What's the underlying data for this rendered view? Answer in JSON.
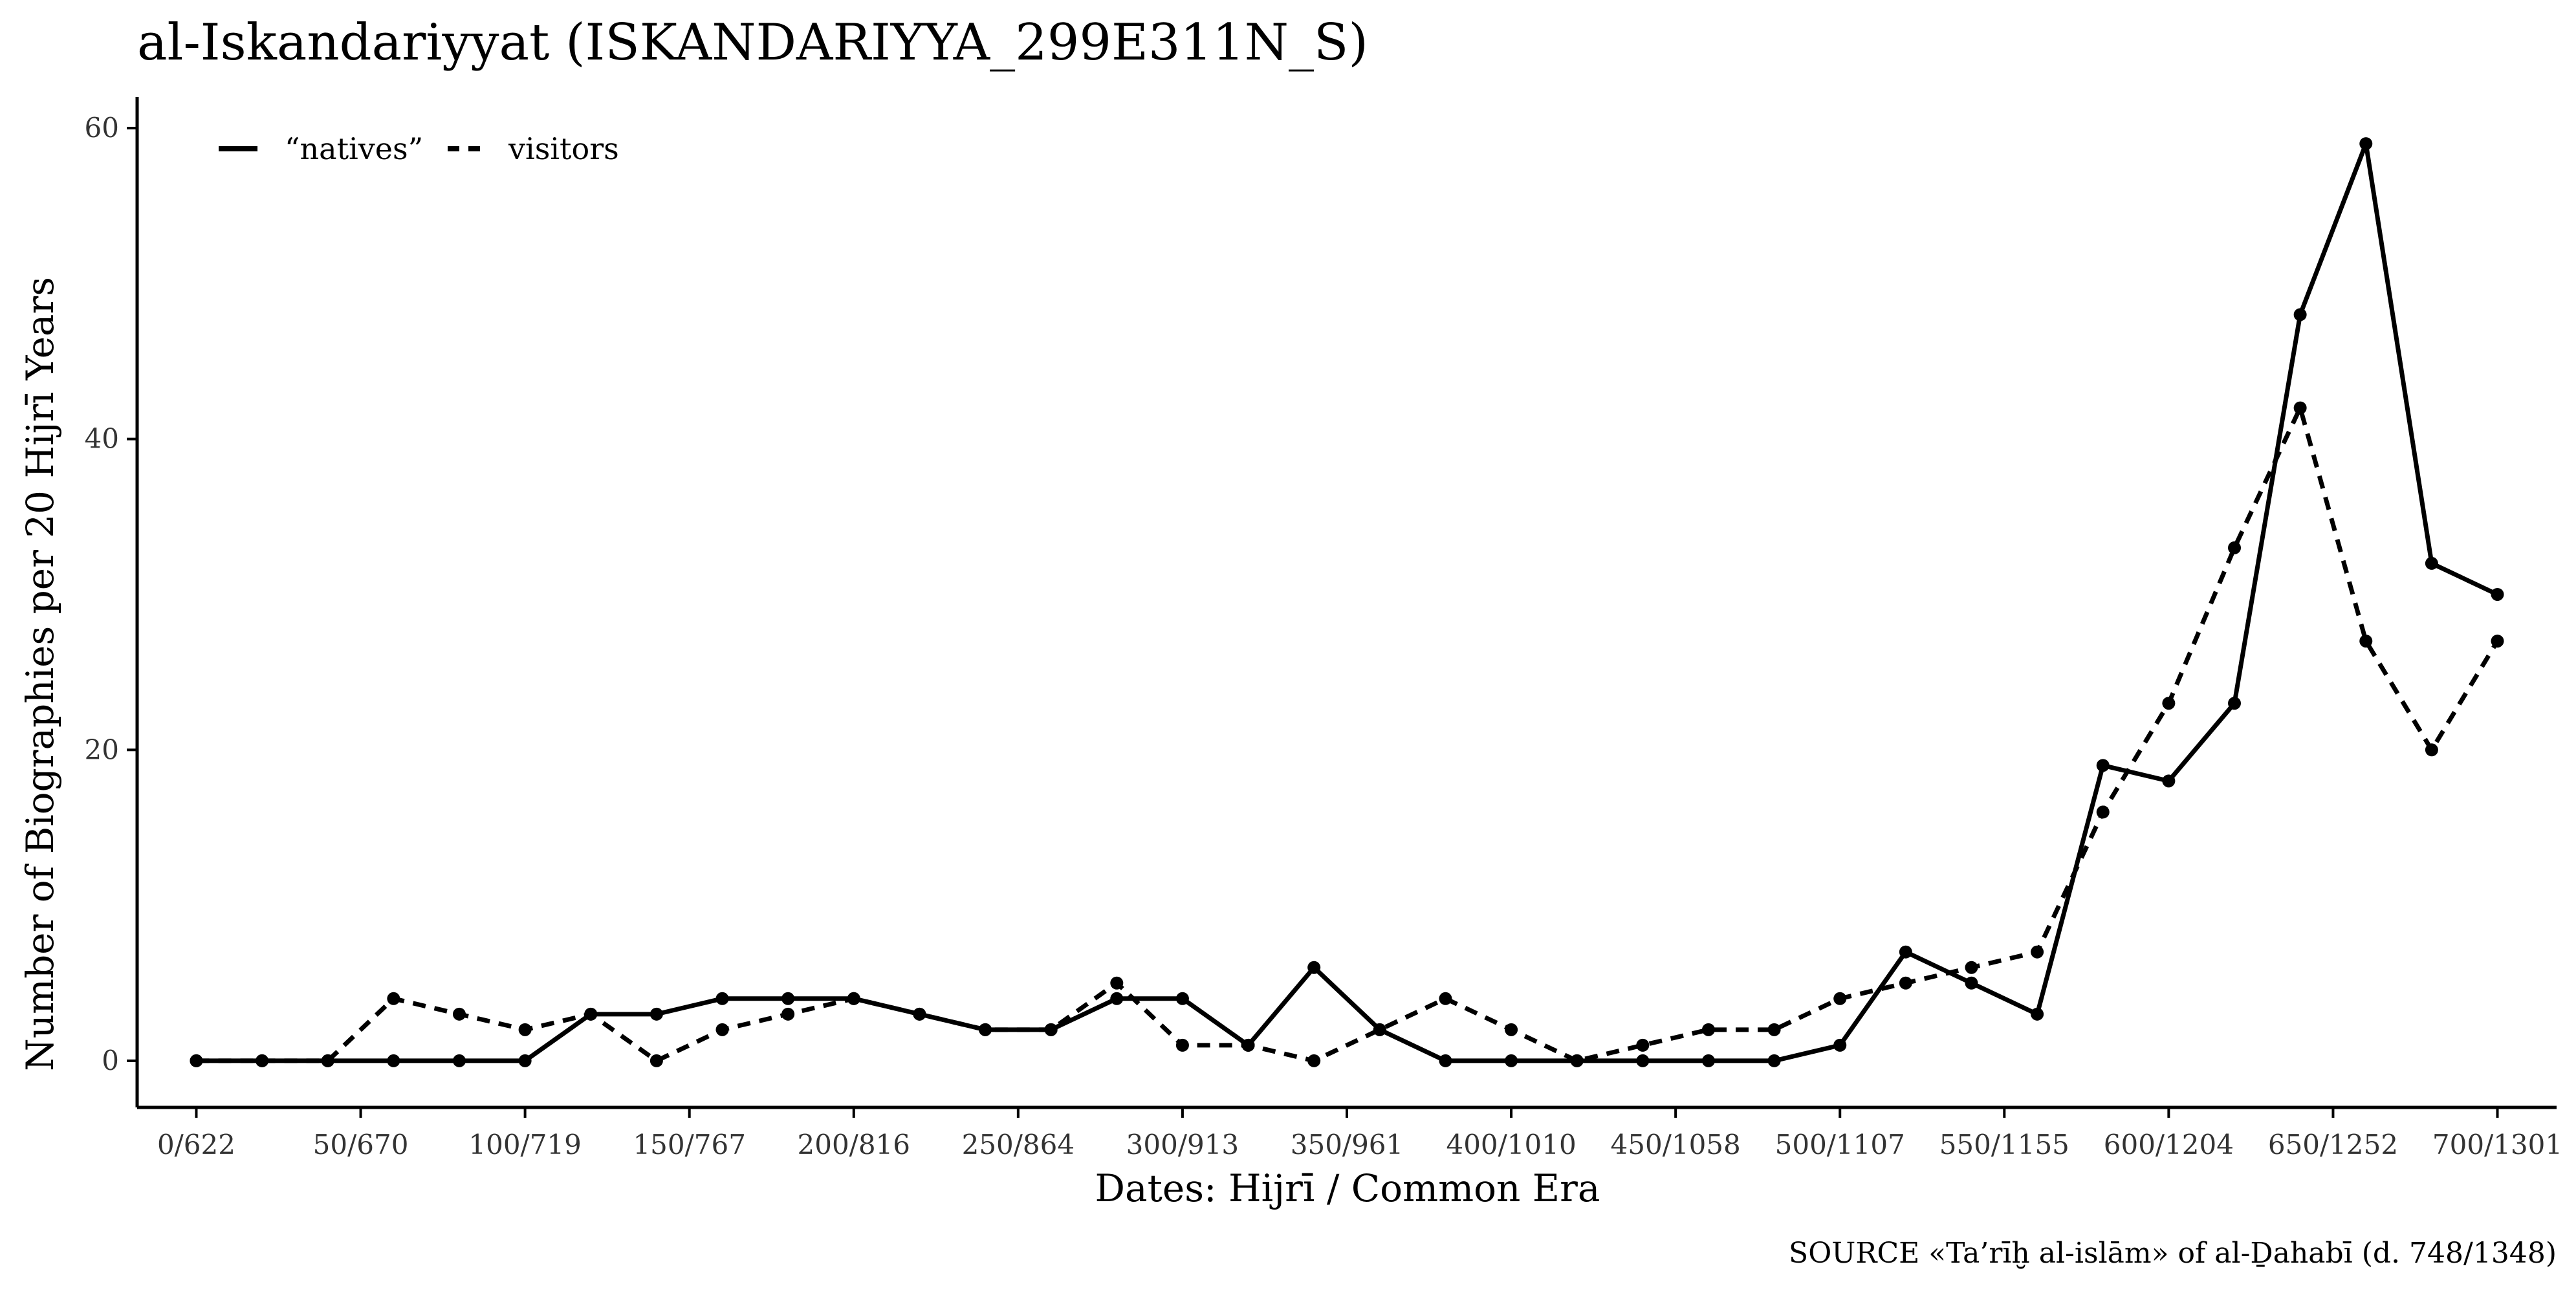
{
  "chart_data": {
    "type": "line",
    "title": "al-Iskandariyyat (ISKANDARIYYA_299E311N_S)",
    "xlabel": "Dates: Hijrī / Common Era",
    "ylabel": "Number of Biographies per 20 Hijrī Years",
    "caption": "SOURCE «Ta’rīḫ al-islām» of al-Ḏahabī (d. 748/1348)",
    "xlim": [
      -18,
      718
    ],
    "ylim": [
      -3,
      62
    ],
    "grid": false,
    "legend_position": "top-left",
    "x_ticks": [
      {
        "value": 0,
        "label": "0/622"
      },
      {
        "value": 50,
        "label": "50/670"
      },
      {
        "value": 100,
        "label": "100/719"
      },
      {
        "value": 150,
        "label": "150/767"
      },
      {
        "value": 200,
        "label": "200/816"
      },
      {
        "value": 250,
        "label": "250/864"
      },
      {
        "value": 300,
        "label": "300/913"
      },
      {
        "value": 350,
        "label": "350/961"
      },
      {
        "value": 400,
        "label": "400/1010"
      },
      {
        "value": 450,
        "label": "450/1058"
      },
      {
        "value": 500,
        "label": "500/1107"
      },
      {
        "value": 550,
        "label": "550/1155"
      },
      {
        "value": 600,
        "label": "600/1204"
      },
      {
        "value": 650,
        "label": "650/1252"
      },
      {
        "value": 700,
        "label": "700/1301"
      }
    ],
    "y_ticks": [
      {
        "value": 0,
        "label": "0"
      },
      {
        "value": 20,
        "label": "20"
      },
      {
        "value": 40,
        "label": "40"
      },
      {
        "value": 60,
        "label": "60"
      }
    ],
    "x": [
      0,
      20,
      40,
      60,
      80,
      100,
      120,
      140,
      160,
      180,
      200,
      220,
      240,
      260,
      280,
      300,
      320,
      340,
      360,
      380,
      400,
      420,
      440,
      460,
      480,
      500,
      520,
      540,
      560,
      580,
      600,
      620,
      640,
      660,
      680,
      700
    ],
    "series": [
      {
        "name": "“natives”",
        "style": "solid",
        "values": [
          0,
          0,
          0,
          0,
          0,
          0,
          3,
          3,
          4,
          4,
          4,
          3,
          2,
          2,
          4,
          4,
          1,
          6,
          2,
          0,
          0,
          0,
          0,
          0,
          0,
          1,
          7,
          5,
          3,
          19,
          18,
          23,
          48,
          59,
          32,
          30
        ]
      },
      {
        "name": "visitors",
        "style": "dashed",
        "values": [
          0,
          0,
          0,
          4,
          3,
          2,
          3,
          0,
          2,
          3,
          4,
          3,
          2,
          2,
          5,
          1,
          1,
          0,
          2,
          4,
          2,
          0,
          1,
          2,
          2,
          4,
          5,
          6,
          7,
          16,
          23,
          33,
          42,
          27,
          20,
          27
        ]
      }
    ],
    "colors": {
      "line": "#000000",
      "axis": "#000000",
      "tick_text": "#333333"
    }
  }
}
